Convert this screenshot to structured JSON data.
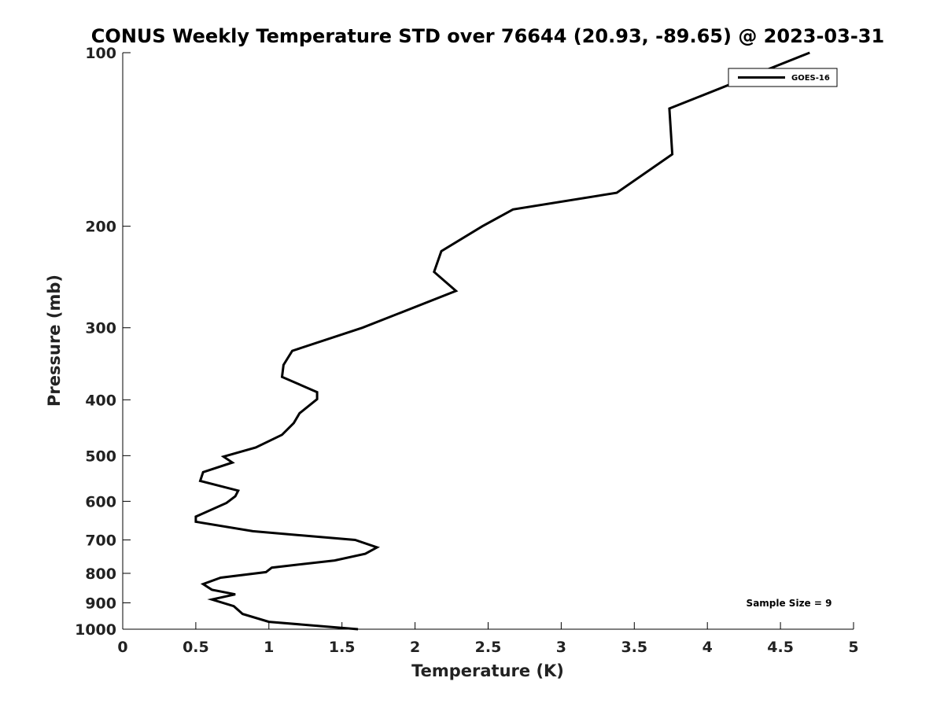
{
  "chart_data": {
    "type": "line",
    "title": "CONUS Weekly Temperature STD over 76644 (20.93, -89.65) @ 2023-03-31",
    "xlabel": "Temperature (K)",
    "ylabel": "Pressure (mb)",
    "xlim": [
      0,
      5
    ],
    "ylim": [
      100,
      1000
    ],
    "yscale": "log",
    "yaxis_inverted": true,
    "xticks": [
      0,
      0.5,
      1,
      1.5,
      2,
      2.5,
      3,
      3.5,
      4,
      4.5,
      5
    ],
    "xtick_labels": [
      "0",
      "0.5",
      "1",
      "1.5",
      "2",
      "2.5",
      "3",
      "3.5",
      "4",
      "4.5",
      "5"
    ],
    "yticks": [
      100,
      200,
      300,
      400,
      500,
      600,
      700,
      800,
      900,
      1000
    ],
    "ytick_labels": [
      "100",
      "200",
      "300",
      "400",
      "500",
      "600",
      "700",
      "800",
      "900",
      "1000"
    ],
    "grid": false,
    "legend_position": "top-right",
    "series": [
      {
        "name": "GOES-16",
        "color": "#000000",
        "points": [
          [
            4.7,
            100
          ],
          [
            3.74,
            125
          ],
          [
            3.76,
            150
          ],
          [
            3.38,
            175
          ],
          [
            2.67,
            187
          ],
          [
            2.46,
            200
          ],
          [
            2.18,
            221
          ],
          [
            2.13,
            240
          ],
          [
            2.28,
            259
          ],
          [
            1.64,
            300
          ],
          [
            1.16,
            329
          ],
          [
            1.1,
            348
          ],
          [
            1.09,
            365
          ],
          [
            1.33,
            388
          ],
          [
            1.33,
            399
          ],
          [
            1.21,
            422
          ],
          [
            1.17,
            439
          ],
          [
            1.09,
            460
          ],
          [
            0.91,
            484
          ],
          [
            0.69,
            502
          ],
          [
            0.75,
            514
          ],
          [
            0.55,
            534
          ],
          [
            0.53,
            553
          ],
          [
            0.79,
            575
          ],
          [
            0.77,
            588
          ],
          [
            0.71,
            604
          ],
          [
            0.5,
            638
          ],
          [
            0.5,
            651
          ],
          [
            0.89,
            676
          ],
          [
            1.59,
            700
          ],
          [
            1.74,
            721
          ],
          [
            1.66,
            740
          ],
          [
            1.45,
            760
          ],
          [
            1.02,
            782
          ],
          [
            0.98,
            796
          ],
          [
            0.67,
            814
          ],
          [
            0.55,
            835
          ],
          [
            0.61,
            854
          ],
          [
            0.77,
            870
          ],
          [
            0.61,
            888
          ],
          [
            0.76,
            912
          ],
          [
            0.82,
            941
          ],
          [
            1.0,
            971
          ],
          [
            1.61,
            1000
          ]
        ]
      }
    ],
    "annotations": [
      "Sample Size = 9"
    ]
  }
}
